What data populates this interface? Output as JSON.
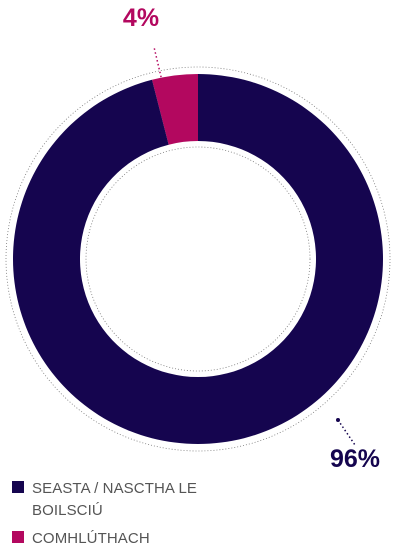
{
  "chart_data": {
    "type": "pie",
    "title": "",
    "series": [
      {
        "name": "SEASTA / NASCTHA LE BOILSCIÚ",
        "value": 96,
        "label": "96%",
        "color": "#15054f"
      },
      {
        "name": "COMHLÚTHACH",
        "value": 4,
        "label": "4%",
        "color": "#b3085f"
      }
    ],
    "legend_position": "bottom-left",
    "donut": true
  },
  "legend": {
    "items": [
      {
        "label": "SEASTA / NASCTHA LE BOILSCIÚ",
        "color": "#15054f"
      },
      {
        "label": "COMHLÚTHACH",
        "color": "#b3085f"
      }
    ]
  }
}
